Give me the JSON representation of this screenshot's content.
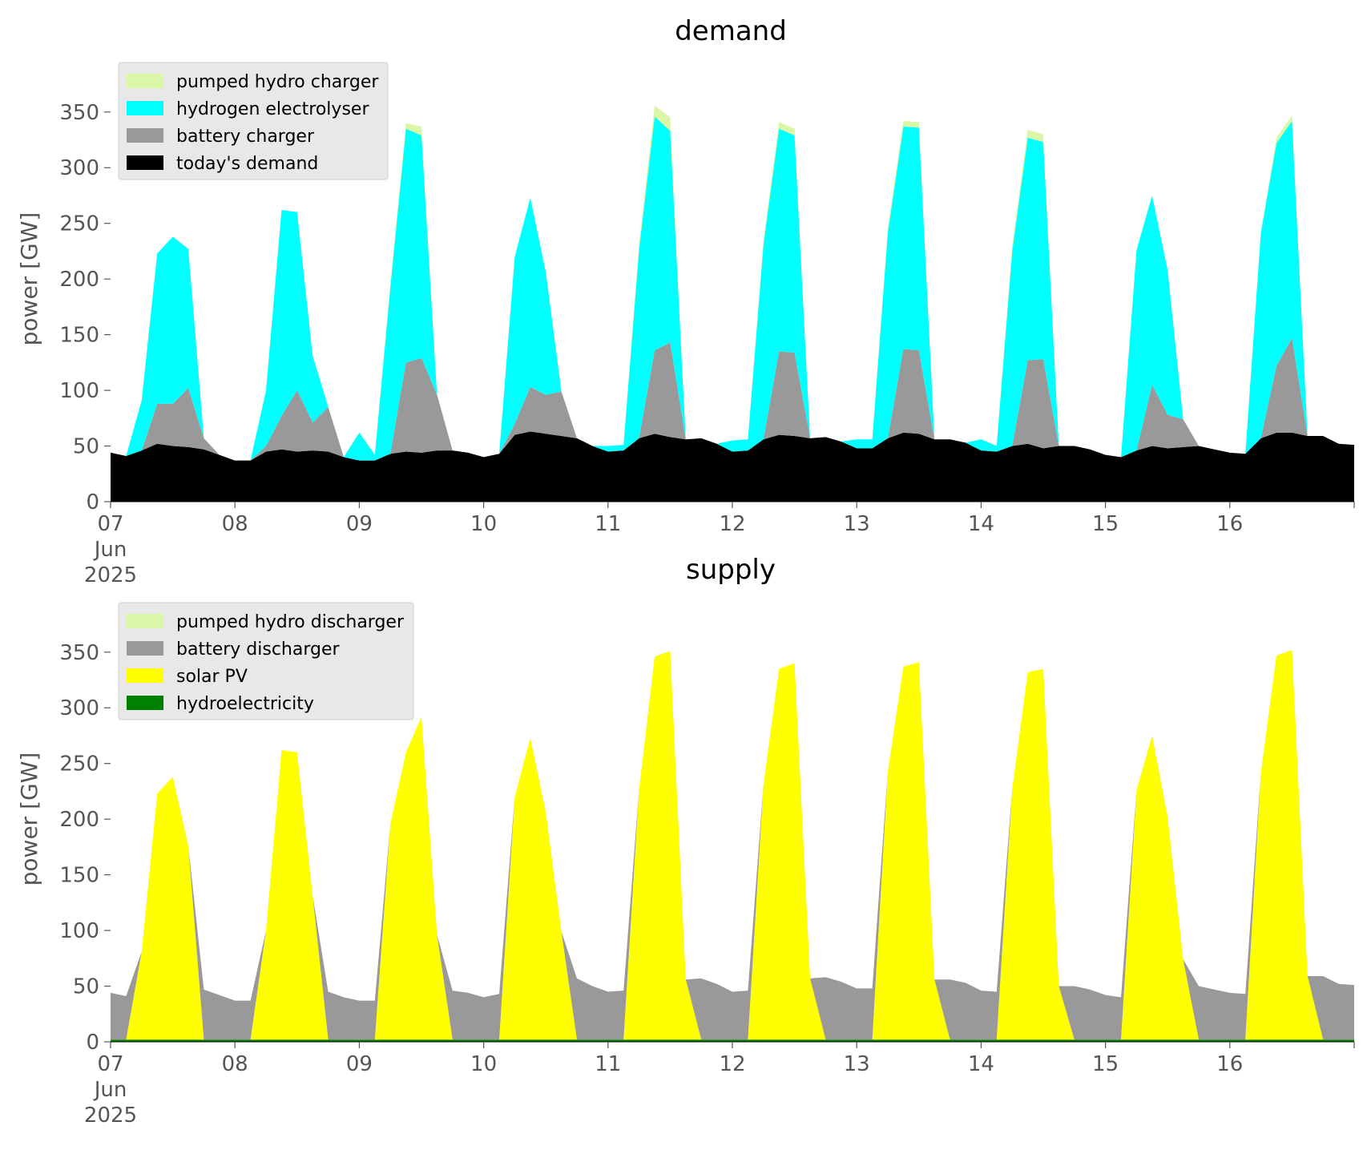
{
  "chart_data": [
    {
      "type": "area",
      "stacked": true,
      "title": "demand",
      "xlabel": "",
      "ylabel": "power [GW]",
      "ylim": [
        0,
        370
      ],
      "xlim": [
        "2025-06-07",
        "2025-06-17"
      ],
      "x_ticks": [
        {
          "value": "2025-06-07",
          "lines": [
            "07",
            "Jun",
            "2025"
          ]
        },
        {
          "value": "2025-06-08",
          "lines": [
            "08"
          ]
        },
        {
          "value": "2025-06-09",
          "lines": [
            "09"
          ]
        },
        {
          "value": "2025-06-10",
          "lines": [
            "10"
          ]
        },
        {
          "value": "2025-06-11",
          "lines": [
            "11"
          ]
        },
        {
          "value": "2025-06-12",
          "lines": [
            "12"
          ]
        },
        {
          "value": "2025-06-13",
          "lines": [
            "13"
          ]
        },
        {
          "value": "2025-06-14",
          "lines": [
            "14"
          ]
        },
        {
          "value": "2025-06-15",
          "lines": [
            "15"
          ]
        },
        {
          "value": "2025-06-16",
          "lines": [
            "16"
          ]
        }
      ],
      "y_ticks": [
        0,
        50,
        100,
        150,
        200,
        250,
        300,
        350
      ],
      "grid": false,
      "legend_position": "top-left",
      "legend_order": [
        "pumped hydro charger",
        "hydrogen electrolyser",
        "battery charger",
        "today's demand"
      ],
      "x": [
        "2025-06-07 00:00",
        "2025-06-07 03:00",
        "2025-06-07 06:00",
        "2025-06-07 09:00",
        "2025-06-07 12:00",
        "2025-06-07 15:00",
        "2025-06-07 18:00",
        "2025-06-07 21:00",
        "2025-06-08 00:00",
        "2025-06-08 03:00",
        "2025-06-08 06:00",
        "2025-06-08 09:00",
        "2025-06-08 12:00",
        "2025-06-08 15:00",
        "2025-06-08 18:00",
        "2025-06-08 21:00",
        "2025-06-09 00:00",
        "2025-06-09 03:00",
        "2025-06-09 06:00",
        "2025-06-09 09:00",
        "2025-06-09 12:00",
        "2025-06-09 15:00",
        "2025-06-09 18:00",
        "2025-06-09 21:00",
        "2025-06-10 00:00",
        "2025-06-10 03:00",
        "2025-06-10 06:00",
        "2025-06-10 09:00",
        "2025-06-10 12:00",
        "2025-06-10 15:00",
        "2025-06-10 18:00",
        "2025-06-10 21:00",
        "2025-06-11 00:00",
        "2025-06-11 03:00",
        "2025-06-11 06:00",
        "2025-06-11 09:00",
        "2025-06-11 12:00",
        "2025-06-11 15:00",
        "2025-06-11 18:00",
        "2025-06-11 21:00",
        "2025-06-12 00:00",
        "2025-06-12 03:00",
        "2025-06-12 06:00",
        "2025-06-12 09:00",
        "2025-06-12 12:00",
        "2025-06-12 15:00",
        "2025-06-12 18:00",
        "2025-06-12 21:00",
        "2025-06-13 00:00",
        "2025-06-13 03:00",
        "2025-06-13 06:00",
        "2025-06-13 09:00",
        "2025-06-13 12:00",
        "2025-06-13 15:00",
        "2025-06-13 18:00",
        "2025-06-13 21:00",
        "2025-06-14 00:00",
        "2025-06-14 03:00",
        "2025-06-14 06:00",
        "2025-06-14 09:00",
        "2025-06-14 12:00",
        "2025-06-14 15:00",
        "2025-06-14 18:00",
        "2025-06-14 21:00",
        "2025-06-15 00:00",
        "2025-06-15 03:00",
        "2025-06-15 06:00",
        "2025-06-15 09:00",
        "2025-06-15 12:00",
        "2025-06-15 15:00",
        "2025-06-15 18:00",
        "2025-06-15 21:00",
        "2025-06-16 00:00",
        "2025-06-16 03:00",
        "2025-06-16 06:00",
        "2025-06-16 09:00",
        "2025-06-16 12:00",
        "2025-06-16 15:00",
        "2025-06-16 18:00",
        "2025-06-16 21:00",
        "2025-06-17 00:00"
      ],
      "series": [
        {
          "name": "today's demand",
          "color": "#000000",
          "values": [
            44,
            41,
            46,
            52,
            50,
            49,
            47,
            42,
            37,
            37,
            45,
            47,
            45,
            46,
            45,
            40,
            37,
            37,
            43,
            45,
            44,
            46,
            46,
            44,
            40,
            43,
            60,
            63,
            61,
            59,
            57,
            50,
            45,
            46,
            57,
            61,
            58,
            56,
            57,
            52,
            45,
            46,
            56,
            60,
            59,
            57,
            58,
            54,
            48,
            48,
            57,
            62,
            61,
            56,
            56,
            53,
            46,
            45,
            50,
            52,
            48,
            50,
            50,
            47,
            42,
            40,
            46,
            50,
            48,
            49,
            50,
            47,
            44,
            43,
            57,
            62,
            62,
            59,
            59,
            52,
            51
          ]
        },
        {
          "name": "battery charger",
          "color": "#999999",
          "values": [
            0,
            0,
            0,
            36,
            38,
            53,
            10,
            0,
            0,
            0,
            5,
            30,
            55,
            25,
            40,
            0,
            0,
            0,
            0,
            80,
            85,
            50,
            0,
            0,
            0,
            0,
            10,
            40,
            35,
            40,
            0,
            0,
            0,
            0,
            0,
            75,
            85,
            0,
            0,
            0,
            0,
            0,
            0,
            75,
            75,
            0,
            0,
            0,
            0,
            0,
            0,
            75,
            75,
            0,
            0,
            0,
            0,
            0,
            0,
            75,
            80,
            0,
            0,
            0,
            0,
            0,
            0,
            55,
            30,
            25,
            0,
            0,
            0,
            0,
            0,
            60,
            85,
            0,
            0,
            0,
            0
          ]
        },
        {
          "name": "hydrogen electrolyser",
          "color": "#00ffff",
          "values": [
            0,
            0,
            45,
            135,
            150,
            125,
            0,
            0,
            0,
            0,
            50,
            185,
            160,
            60,
            0,
            0,
            25,
            5,
            150,
            210,
            200,
            0,
            0,
            0,
            0,
            0,
            150,
            170,
            110,
            0,
            0,
            0,
            5,
            5,
            170,
            210,
            190,
            0,
            0,
            0,
            10,
            10,
            175,
            200,
            195,
            0,
            0,
            0,
            8,
            8,
            185,
            200,
            200,
            0,
            0,
            0,
            10,
            5,
            175,
            200,
            195,
            0,
            0,
            0,
            0,
            0,
            180,
            170,
            130,
            0,
            0,
            0,
            0,
            0,
            185,
            200,
            195,
            0,
            0,
            0,
            0
          ]
        },
        {
          "name": "pumped hydro charger",
          "color": "#d9f7a6",
          "values": [
            0,
            0,
            0,
            0,
            0,
            0,
            0,
            0,
            0,
            0,
            0,
            0,
            0,
            0,
            0,
            0,
            0,
            0,
            3,
            5,
            8,
            0,
            0,
            0,
            0,
            0,
            0,
            0,
            0,
            0,
            0,
            0,
            0,
            0,
            5,
            10,
            12,
            0,
            0,
            0,
            0,
            0,
            4,
            6,
            6,
            0,
            0,
            0,
            0,
            0,
            4,
            5,
            5,
            0,
            0,
            0,
            0,
            0,
            5,
            7,
            7,
            0,
            0,
            0,
            0,
            0,
            0,
            0,
            0,
            0,
            0,
            0,
            0,
            0,
            0,
            5,
            5,
            0,
            0,
            0,
            0
          ]
        }
      ]
    },
    {
      "type": "area",
      "stacked": true,
      "title": "supply",
      "xlabel": "",
      "ylabel": "power [GW]",
      "ylim": [
        0,
        370
      ],
      "xlim": [
        "2025-06-07",
        "2025-06-17"
      ],
      "x_ticks": [
        {
          "value": "2025-06-07",
          "lines": [
            "07",
            "Jun",
            "2025"
          ]
        },
        {
          "value": "2025-06-08",
          "lines": [
            "08"
          ]
        },
        {
          "value": "2025-06-09",
          "lines": [
            "09"
          ]
        },
        {
          "value": "2025-06-10",
          "lines": [
            "10"
          ]
        },
        {
          "value": "2025-06-11",
          "lines": [
            "11"
          ]
        },
        {
          "value": "2025-06-12",
          "lines": [
            "12"
          ]
        },
        {
          "value": "2025-06-13",
          "lines": [
            "13"
          ]
        },
        {
          "value": "2025-06-14",
          "lines": [
            "14"
          ]
        },
        {
          "value": "2025-06-15",
          "lines": [
            "15"
          ]
        },
        {
          "value": "2025-06-16",
          "lines": [
            "16"
          ]
        }
      ],
      "y_ticks": [
        0,
        50,
        100,
        150,
        200,
        250,
        300,
        350
      ],
      "grid": false,
      "legend_position": "top-left",
      "legend_order": [
        "pumped hydro discharger",
        "battery discharger",
        "solar PV",
        "hydroelectricity"
      ],
      "x": [
        "2025-06-07 00:00",
        "2025-06-07 03:00",
        "2025-06-07 06:00",
        "2025-06-07 09:00",
        "2025-06-07 12:00",
        "2025-06-07 15:00",
        "2025-06-07 18:00",
        "2025-06-07 21:00",
        "2025-06-08 00:00",
        "2025-06-08 03:00",
        "2025-06-08 06:00",
        "2025-06-08 09:00",
        "2025-06-08 12:00",
        "2025-06-08 15:00",
        "2025-06-08 18:00",
        "2025-06-08 21:00",
        "2025-06-09 00:00",
        "2025-06-09 03:00",
        "2025-06-09 06:00",
        "2025-06-09 09:00",
        "2025-06-09 12:00",
        "2025-06-09 15:00",
        "2025-06-09 18:00",
        "2025-06-09 21:00",
        "2025-06-10 00:00",
        "2025-06-10 03:00",
        "2025-06-10 06:00",
        "2025-06-10 09:00",
        "2025-06-10 12:00",
        "2025-06-10 15:00",
        "2025-06-10 18:00",
        "2025-06-10 21:00",
        "2025-06-11 00:00",
        "2025-06-11 03:00",
        "2025-06-11 06:00",
        "2025-06-11 09:00",
        "2025-06-11 12:00",
        "2025-06-11 15:00",
        "2025-06-11 18:00",
        "2025-06-11 21:00",
        "2025-06-12 00:00",
        "2025-06-12 03:00",
        "2025-06-12 06:00",
        "2025-06-12 09:00",
        "2025-06-12 12:00",
        "2025-06-12 15:00",
        "2025-06-12 18:00",
        "2025-06-12 21:00",
        "2025-06-13 00:00",
        "2025-06-13 03:00",
        "2025-06-13 06:00",
        "2025-06-13 09:00",
        "2025-06-13 12:00",
        "2025-06-13 15:00",
        "2025-06-13 18:00",
        "2025-06-13 21:00",
        "2025-06-14 00:00",
        "2025-06-14 03:00",
        "2025-06-14 06:00",
        "2025-06-14 09:00",
        "2025-06-14 12:00",
        "2025-06-14 15:00",
        "2025-06-14 18:00",
        "2025-06-14 21:00",
        "2025-06-15 00:00",
        "2025-06-15 03:00",
        "2025-06-15 06:00",
        "2025-06-15 09:00",
        "2025-06-15 12:00",
        "2025-06-15 15:00",
        "2025-06-15 18:00",
        "2025-06-15 21:00",
        "2025-06-16 00:00",
        "2025-06-16 03:00",
        "2025-06-16 06:00",
        "2025-06-16 09:00",
        "2025-06-16 12:00",
        "2025-06-16 15:00",
        "2025-06-16 18:00",
        "2025-06-16 21:00",
        "2025-06-17 00:00"
      ],
      "series": [
        {
          "name": "hydroelectricity",
          "color": "#008000",
          "values": [
            2,
            2,
            2,
            2,
            2,
            2,
            2,
            2,
            2,
            2,
            2,
            2,
            2,
            2,
            2,
            2,
            2,
            2,
            2,
            2,
            2,
            2,
            2,
            2,
            2,
            2,
            2,
            2,
            2,
            2,
            2,
            2,
            2,
            2,
            2,
            2,
            2,
            2,
            2,
            2,
            2,
            2,
            2,
            2,
            2,
            2,
            2,
            2,
            2,
            2,
            2,
            2,
            2,
            2,
            2,
            2,
            2,
            2,
            2,
            2,
            2,
            2,
            2,
            2,
            2,
            2,
            2,
            2,
            2,
            2,
            2,
            2,
            2,
            2,
            2,
            2,
            2,
            2,
            2,
            2,
            2
          ]
        },
        {
          "name": "solar PV",
          "color": "#ffff00",
          "values": [
            0,
            0,
            79,
            221,
            236,
            174,
            0,
            0,
            0,
            0,
            98,
            260,
            258,
            129,
            0,
            0,
            0,
            0,
            194,
            258,
            290,
            94,
            0,
            0,
            0,
            0,
            218,
            271,
            204,
            97,
            0,
            0,
            0,
            0,
            225,
            344,
            349,
            54,
            0,
            0,
            0,
            0,
            229,
            333,
            338,
            55,
            0,
            0,
            0,
            0,
            241,
            335,
            339,
            54,
            0,
            0,
            0,
            0,
            225,
            330,
            333,
            48,
            0,
            0,
            0,
            0,
            224,
            273,
            200,
            72,
            0,
            0,
            0,
            0,
            240,
            345,
            350,
            57,
            0,
            0,
            0
          ]
        },
        {
          "name": "battery discharger",
          "color": "#999999",
          "values": [
            42,
            39,
            0,
            0,
            0,
            0,
            45,
            40,
            35,
            35,
            0,
            0,
            0,
            0,
            43,
            38,
            35,
            35,
            0,
            0,
            0,
            0,
            44,
            42,
            38,
            41,
            0,
            0,
            0,
            0,
            55,
            48,
            43,
            44,
            0,
            0,
            0,
            0,
            55,
            50,
            43,
            44,
            0,
            0,
            0,
            0,
            56,
            52,
            46,
            46,
            0,
            0,
            0,
            0,
            54,
            51,
            44,
            43,
            0,
            0,
            0,
            0,
            48,
            45,
            40,
            38,
            0,
            0,
            0,
            0,
            48,
            45,
            42,
            41,
            0,
            0,
            0,
            0,
            57,
            50,
            49
          ]
        },
        {
          "name": "pumped hydro discharger",
          "color": "#d9f7a6",
          "values": [
            0,
            0,
            0,
            0,
            0,
            0,
            0,
            0,
            0,
            0,
            0,
            0,
            0,
            0,
            0,
            0,
            0,
            0,
            0,
            0,
            0,
            0,
            0,
            0,
            0,
            0,
            0,
            0,
            0,
            0,
            0,
            0,
            0,
            0,
            0,
            0,
            0,
            0,
            0,
            0,
            0,
            0,
            0,
            0,
            0,
            0,
            0,
            0,
            0,
            0,
            0,
            0,
            0,
            0,
            0,
            0,
            0,
            0,
            0,
            0,
            0,
            0,
            0,
            0,
            0,
            0,
            0,
            0,
            0,
            0,
            0,
            0,
            0,
            0,
            0,
            0,
            0,
            0,
            0,
            0,
            0
          ]
        }
      ]
    }
  ]
}
